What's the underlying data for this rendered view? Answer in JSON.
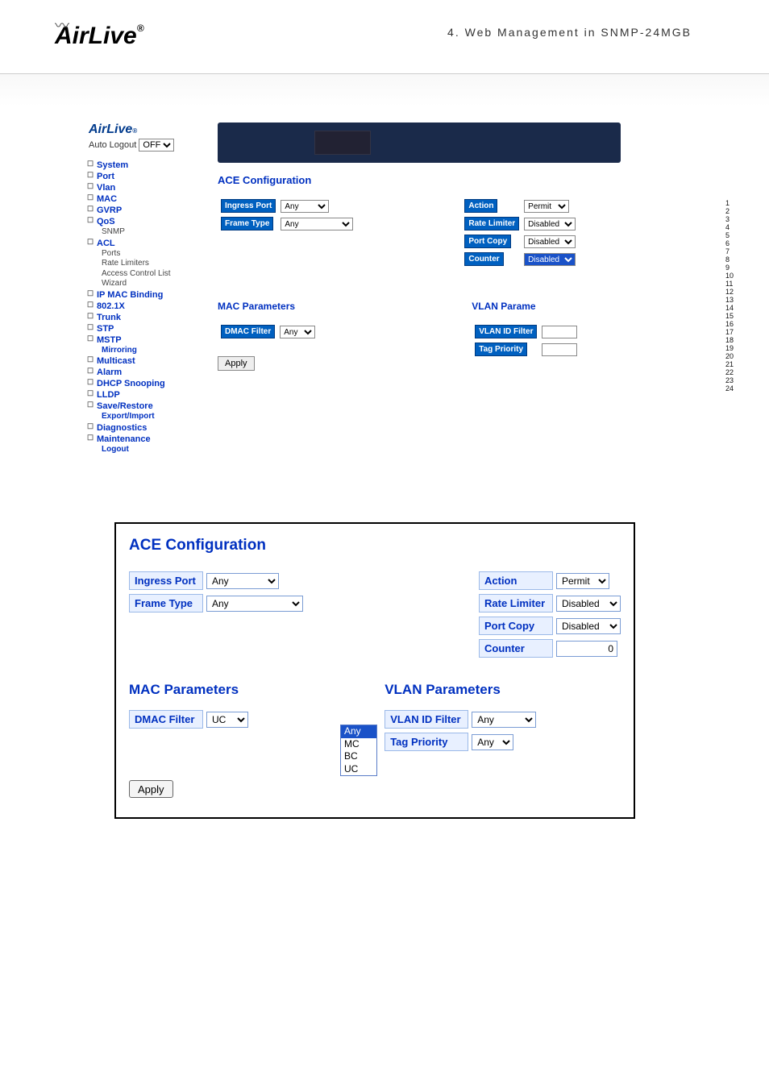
{
  "header": {
    "brand": "AirLive",
    "crumb": "4.  Web  Management  in  SNMP-24MGB"
  },
  "shot1": {
    "autoLogoutLabel": "Auto Logout",
    "autoLogoutValue": "OFF",
    "nav": [
      {
        "l": "System",
        "t": "h"
      },
      {
        "l": "Port",
        "t": "h"
      },
      {
        "l": "Vlan",
        "t": "h"
      },
      {
        "l": "MAC",
        "t": "h"
      },
      {
        "l": "GVRP",
        "t": "h"
      },
      {
        "l": "QoS",
        "t": "h"
      },
      {
        "l": "SNMP",
        "t": "s"
      },
      {
        "l": "ACL",
        "t": "h"
      },
      {
        "l": "Ports",
        "t": "s"
      },
      {
        "l": "Rate Limiters",
        "t": "s"
      },
      {
        "l": "Access Control List",
        "t": "s"
      },
      {
        "l": "Wizard",
        "t": "s"
      },
      {
        "l": "IP MAC Binding",
        "t": "h"
      },
      {
        "l": "802.1X",
        "t": "h"
      },
      {
        "l": "Trunk",
        "t": "h"
      },
      {
        "l": "STP",
        "t": "h"
      },
      {
        "l": "MSTP",
        "t": "h"
      },
      {
        "l": "Mirroring",
        "t": "s",
        "c": "#0030c0"
      },
      {
        "l": "Multicast",
        "t": "h"
      },
      {
        "l": "Alarm",
        "t": "h"
      },
      {
        "l": "DHCP Snooping",
        "t": "h"
      },
      {
        "l": "LLDP",
        "t": "h"
      },
      {
        "l": "Save/Restore",
        "t": "h"
      },
      {
        "l": "Export/Import",
        "t": "s",
        "c": "#0030c0"
      },
      {
        "l": "Diagnostics",
        "t": "h"
      },
      {
        "l": "Maintenance",
        "t": "h"
      },
      {
        "l": "Logout",
        "t": "s",
        "c": "#0030c0"
      }
    ],
    "aceTitle": "ACE Configuration",
    "ingressPort": "Ingress Port",
    "ingressVal": "Any",
    "frameType": "Frame Type",
    "frameVal": "Any",
    "action": "Action",
    "actionVal": "Permit",
    "rateLimiter": "Rate Limiter",
    "rateLimiterVal": "Disabled",
    "portCopy": "Port Copy",
    "portCopyVal": "Disabled",
    "counter": "Counter",
    "counterVal": "Disabled",
    "macParamsTitle": "MAC Parameters",
    "vlanParamsTitle": "VLAN Parame",
    "dmacFilter": "DMAC Filter",
    "dmacVal": "Any",
    "vlanIdFilter": "VLAN ID Filter",
    "tagPriority": "Tag Priority",
    "apply": "Apply",
    "ports": [
      "1",
      "2",
      "3",
      "4",
      "5",
      "6",
      "7",
      "8",
      "9",
      "10",
      "11",
      "12",
      "13",
      "14",
      "15",
      "16",
      "17",
      "18",
      "19",
      "20",
      "21",
      "22",
      "23",
      "24"
    ]
  },
  "shot2": {
    "aceTitle": "ACE Configuration",
    "ingressPort": "Ingress Port",
    "ingressVal": "Any",
    "frameType": "Frame Type",
    "frameVal": "Any",
    "action": "Action",
    "actionVal": "Permit",
    "rateLimiter": "Rate Limiter",
    "rateLimiterVal": "Disabled",
    "portCopy": "Port Copy",
    "portCopyVal": "Disabled",
    "counter": "Counter",
    "counterVal": "0",
    "macParamsTitle": "MAC Parameters",
    "vlanParamsTitle": "VLAN Parameters",
    "dmacFilter": "DMAC Filter",
    "dmacVal": "UC",
    "dmacOptions": [
      "Any",
      "MC",
      "BC",
      "UC"
    ],
    "vlanIdFilter": "VLAN ID Filter",
    "vlanIdVal": "Any",
    "tagPriority": "Tag Priority",
    "tagPriorityVal": "Any",
    "apply": "Apply"
  }
}
